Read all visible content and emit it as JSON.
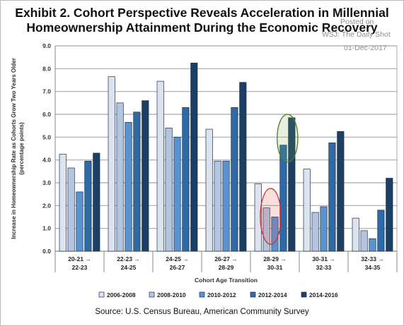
{
  "title_line1": "Exhibit 2. Cohort Perspective Reveals Acceleration in Millennial",
  "title_line2": "Homeownership Attainment During the Economic Recovery",
  "watermark": [
    "Posted on",
    "WSJ: The Daily Shot",
    "01-Dec-2017"
  ],
  "source": "Source: U.S. Census Bureau, American Community Survey",
  "colors": {
    "series": [
      "#dbe3ef",
      "#b3c6e1",
      "#5b93cf",
      "#2e6aa6",
      "#1c3f66"
    ],
    "bar_outline": "#1f2f45",
    "grid": "#a8a8a8",
    "red_ellipse": "#d12c2c",
    "green_ellipse": "#4a7d24"
  },
  "chart_data": {
    "type": "bar",
    "ylabel": "Increase in Homeownership Rate as Cohorts Grow Two Years Older (percentage points)",
    "xlabel": "Cohort Age Transition",
    "ylim": [
      0,
      9
    ],
    "yticks": [
      "0.0",
      "1.0",
      "2.0",
      "3.0",
      "4.0",
      "5.0",
      "6.0",
      "7.0",
      "8.0",
      "9.0"
    ],
    "grid": true,
    "legend_position": "bottom",
    "categories": [
      [
        "20-21 →",
        "22-23"
      ],
      [
        "22-23 →",
        "24-25"
      ],
      [
        "24-25 →",
        "26-27"
      ],
      [
        "26-27 →",
        "28-29"
      ],
      [
        "28-29 →",
        "30-31"
      ],
      [
        "30-31 →",
        "32-33"
      ],
      [
        "32-33 →",
        "34-35"
      ]
    ],
    "series": [
      {
        "name": "2006-2008",
        "values": [
          4.25,
          7.65,
          7.45,
          5.35,
          2.95,
          3.6,
          1.45
        ]
      },
      {
        "name": "2008-2010",
        "values": [
          3.65,
          6.5,
          5.4,
          3.95,
          1.9,
          1.7,
          0.9
        ]
      },
      {
        "name": "2010-2012",
        "values": [
          2.6,
          5.65,
          5.0,
          3.95,
          1.5,
          1.95,
          0.55
        ]
      },
      {
        "name": "2012-2014",
        "values": [
          3.95,
          6.1,
          6.3,
          6.3,
          4.65,
          4.75,
          1.8
        ]
      },
      {
        "name": "2014-2016",
        "values": [
          4.3,
          6.6,
          8.25,
          7.4,
          5.85,
          5.25,
          3.2
        ]
      }
    ],
    "annotations": [
      {
        "shape": "ellipse",
        "color": "red",
        "category_index": 4,
        "series_from": 1,
        "series_to": 2,
        "y_from": 0.3,
        "y_to": 2.75
      },
      {
        "shape": "ellipse",
        "color": "green",
        "category_index": 4,
        "series_from": 3,
        "series_to": 4,
        "y_from": 3.9,
        "y_to": 6.0
      }
    ]
  }
}
